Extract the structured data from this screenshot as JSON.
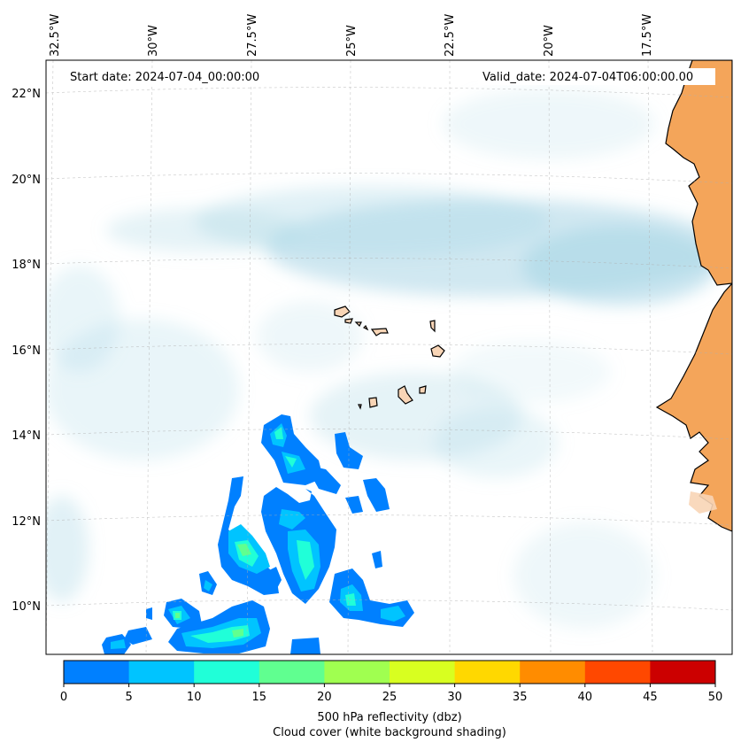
{
  "map": {
    "start_label": "Start date: 2024-07-04_00:00:00",
    "valid_label": "Valid_date: 2024-07-04T06:00:00.00",
    "lon_labels": [
      "32.5°W",
      "30°W",
      "27.5°W",
      "25°W",
      "22.5°W",
      "20°W",
      "17.5°W"
    ],
    "lat_labels": [
      "22°N",
      "20°N",
      "18°N",
      "16°N",
      "14°N",
      "12°N",
      "10°N"
    ],
    "colors": {
      "land": "#f4a55a",
      "land_light": "#f8d5b6",
      "cloud": "#a9d6e6",
      "coast": "#000000",
      "grid": "#b0b0b0"
    }
  },
  "colorbar": {
    "ticks": [
      "0",
      "5",
      "10",
      "15",
      "20",
      "25",
      "30",
      "35",
      "40",
      "45",
      "50"
    ],
    "label_line1": "500 hPa reflectivity (dbz)",
    "label_line2": "Cloud cover (white background shading)",
    "colors": [
      "#0080ff",
      "#00c4ff",
      "#20ffd8",
      "#60ff90",
      "#a0ff50",
      "#d8ff20",
      "#ffd800",
      "#ff8c00",
      "#ff4800",
      "#cc0000"
    ]
  }
}
